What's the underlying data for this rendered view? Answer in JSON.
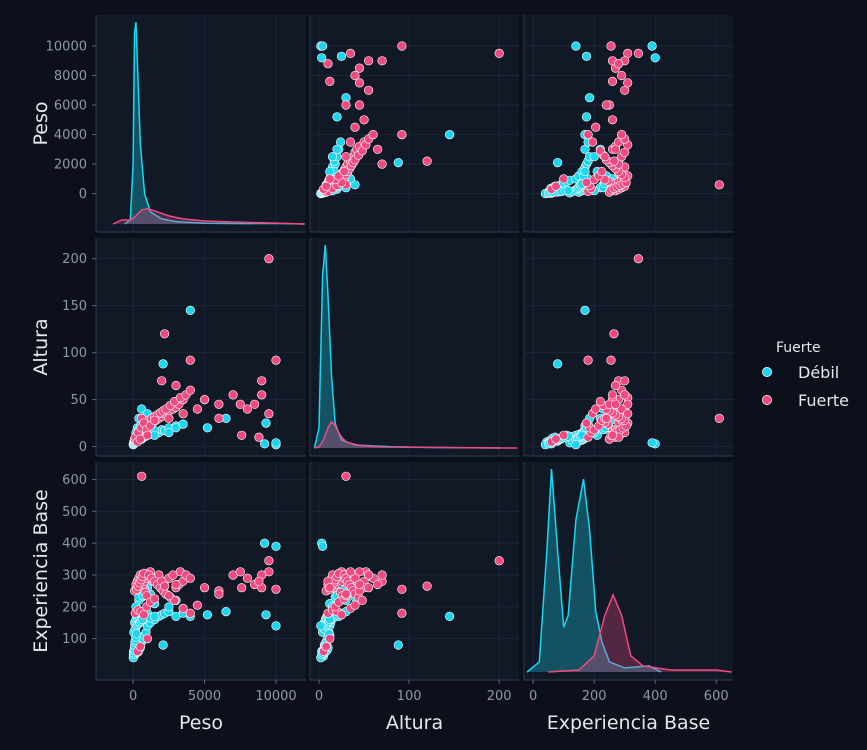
{
  "chart_data": {
    "type": "scatter",
    "subtype": "pairplot",
    "variables": [
      "Peso",
      "Altura",
      "Experiencia Base"
    ],
    "axis": {
      "Peso": {
        "range": [
          -2600,
          12100
        ],
        "ticks": [
          0,
          5000,
          10000
        ],
        "ticks_y": [
          0,
          2000,
          4000,
          6000,
          8000,
          10000
        ]
      },
      "Altura": {
        "range": [
          -10,
          222
        ],
        "ticks": [
          0,
          100,
          200
        ],
        "ticks_y": [
          0,
          50,
          100,
          150,
          200
        ]
      },
      "Experiencia Base": {
        "range": [
          -30,
          655
        ],
        "ticks": [
          0,
          200,
          400,
          600
        ],
        "ticks_y": [
          100,
          200,
          300,
          400,
          500,
          600
        ]
      }
    },
    "legend": {
      "title": "Fuerte",
      "position": "right",
      "entries": [
        {
          "label": "Débil",
          "color": "#1ad6f0"
        },
        {
          "label": "Fuerte",
          "color": "#f04a80"
        }
      ]
    },
    "grid": true,
    "series": [
      {
        "name": "Débil",
        "color": "#1ad6f0",
        "points": [
          [
            30,
            3,
            60
          ],
          [
            60,
            5,
            45
          ],
          [
            80,
            5,
            65
          ],
          [
            100,
            4,
            50
          ],
          [
            120,
            6,
            70
          ],
          [
            150,
            5,
            55
          ],
          [
            200,
            7,
            60
          ],
          [
            250,
            8,
            75
          ],
          [
            300,
            6,
            80
          ],
          [
            350,
            7,
            58
          ],
          [
            400,
            9,
            64
          ],
          [
            500,
            10,
            72
          ],
          [
            600,
            8,
            90
          ],
          [
            700,
            10,
            100
          ],
          [
            800,
            12,
            110
          ],
          [
            900,
            11,
            120
          ],
          [
            1000,
            12,
            140
          ],
          [
            1200,
            13,
            150
          ],
          [
            1500,
            14,
            160
          ],
          [
            1800,
            15,
            170
          ],
          [
            2000,
            18,
            175
          ],
          [
            2200,
            17,
            180
          ],
          [
            2500,
            20,
            185
          ],
          [
            3000,
            22,
            170
          ],
          [
            3500,
            24,
            180
          ],
          [
            100,
            6,
            150
          ],
          [
            200,
            7,
            160
          ],
          [
            300,
            8,
            165
          ],
          [
            400,
            9,
            170
          ],
          [
            500,
            10,
            175
          ],
          [
            600,
            11,
            180
          ],
          [
            700,
            12,
            160
          ],
          [
            800,
            13,
            170
          ],
          [
            900,
            14,
            175
          ],
          [
            1000,
            15,
            180
          ],
          [
            1200,
            16,
            165
          ],
          [
            1500,
            17,
            170
          ],
          [
            50,
            4,
            120
          ],
          [
            150,
            6,
            130
          ],
          [
            250,
            8,
            140
          ],
          [
            350,
            9,
            145
          ],
          [
            450,
            10,
            150
          ],
          [
            550,
            11,
            155
          ],
          [
            650,
            12,
            160
          ],
          [
            10,
            2,
            40
          ],
          [
            20,
            3,
            50
          ],
          [
            40,
            4,
            55
          ],
          [
            70,
            5,
            62
          ],
          [
            90,
            6,
            68
          ],
          [
            110,
            7,
            78
          ],
          [
            130,
            8,
            88
          ],
          [
            160,
            9,
            95
          ],
          [
            190,
            10,
            105
          ],
          [
            220,
            11,
            115
          ],
          [
            600,
            40,
            230
          ],
          [
            400,
            30,
            220
          ],
          [
            1200,
            25,
            240
          ],
          [
            2100,
            88,
            80
          ],
          [
            6500,
            30,
            185
          ],
          [
            9300,
            25,
            175
          ],
          [
            10000,
            2,
            140
          ],
          [
            4000,
            145,
            170
          ],
          [
            1000,
            35,
            260
          ],
          [
            300,
            20,
            250
          ],
          [
            500,
            22,
            240
          ],
          [
            800,
            28,
            255
          ],
          [
            1500,
            12,
            210
          ],
          [
            2500,
            15,
            200
          ],
          [
            3000,
            20,
            220
          ],
          [
            200,
            15,
            200
          ],
          [
            400,
            18,
            230
          ],
          [
            700,
            20,
            235
          ],
          [
            5200,
            20,
            175
          ],
          [
            9200,
            3,
            400
          ],
          [
            10000,
            4,
            390
          ]
        ]
      },
      {
        "name": "Fuerte",
        "color": "#f04a80",
        "points": [
          [
            200,
            10,
            270
          ],
          [
            300,
            12,
            280
          ],
          [
            400,
            14,
            290
          ],
          [
            500,
            15,
            300
          ],
          [
            600,
            16,
            260
          ],
          [
            700,
            18,
            270
          ],
          [
            800,
            20,
            280
          ],
          [
            900,
            22,
            290
          ],
          [
            1000,
            24,
            300
          ],
          [
            1200,
            25,
            310
          ],
          [
            1400,
            26,
            280
          ],
          [
            1600,
            28,
            290
          ],
          [
            1800,
            30,
            300
          ],
          [
            2000,
            32,
            270
          ],
          [
            2200,
            35,
            280
          ],
          [
            2500,
            38,
            290
          ],
          [
            2800,
            40,
            300
          ],
          [
            3000,
            42,
            260
          ],
          [
            3200,
            45,
            270
          ],
          [
            3500,
            50,
            280
          ],
          [
            100,
            8,
            250
          ],
          [
            250,
            12,
            255
          ],
          [
            350,
            14,
            265
          ],
          [
            450,
            16,
            275
          ],
          [
            550,
            18,
            285
          ],
          [
            650,
            20,
            295
          ],
          [
            750,
            22,
            305
          ],
          [
            850,
            24,
            245
          ],
          [
            950,
            26,
            235
          ],
          [
            1100,
            28,
            300
          ],
          [
            1300,
            30,
            290
          ],
          [
            1500,
            32,
            280
          ],
          [
            1700,
            34,
            270
          ],
          [
            1900,
            36,
            260
          ],
          [
            2100,
            38,
            250
          ],
          [
            2300,
            40,
            240
          ],
          [
            2600,
            44,
            230
          ],
          [
            2900,
            48,
            220
          ],
          [
            3300,
            52,
            310
          ],
          [
            3700,
            55,
            300
          ],
          [
            4000,
            60,
            290
          ],
          [
            2000,
            70,
            280
          ],
          [
            3000,
            65,
            270
          ],
          [
            5000,
            50,
            260
          ],
          [
            6000,
            45,
            250
          ],
          [
            7000,
            55,
            300
          ],
          [
            7500,
            45,
            310
          ],
          [
            8000,
            40,
            290
          ],
          [
            8500,
            45,
            270
          ],
          [
            9000,
            55,
            260
          ],
          [
            9500,
            35,
            310
          ],
          [
            9500,
            200,
            345
          ],
          [
            9000,
            70,
            300
          ],
          [
            10000,
            92,
            255
          ],
          [
            4000,
            92,
            180
          ],
          [
            2200,
            120,
            265
          ],
          [
            600,
            30,
            610
          ],
          [
            150,
            10,
            180
          ],
          [
            350,
            15,
            190
          ],
          [
            550,
            20,
            185
          ],
          [
            750,
            25,
            175
          ],
          [
            950,
            18,
            200
          ],
          [
            1200,
            22,
            215
          ],
          [
            1500,
            28,
            225
          ],
          [
            2500,
            30,
            235
          ],
          [
            3500,
            35,
            195
          ],
          [
            4500,
            40,
            205
          ],
          [
            6000,
            30,
            240
          ],
          [
            8800,
            10,
            280
          ],
          [
            7600,
            12,
            260
          ],
          [
            300,
            5,
            60
          ],
          [
            500,
            8,
            75
          ],
          [
            1000,
            12,
            100
          ]
        ]
      }
    ],
    "kde": {
      "Peso": {
        "Débil": [
          [
            -600,
            0.0
          ],
          [
            -200,
            0.02
          ],
          [
            0,
            0.3
          ],
          [
            100,
            0.95
          ],
          [
            200,
            1.0
          ],
          [
            300,
            0.8
          ],
          [
            500,
            0.4
          ],
          [
            800,
            0.15
          ],
          [
            1200,
            0.06
          ],
          [
            2000,
            0.025
          ],
          [
            3000,
            0.012
          ],
          [
            5000,
            0.004
          ],
          [
            8000,
            0.002
          ],
          [
            10000,
            0.003
          ],
          [
            12000,
            0.0
          ]
        ],
        "Fuerte": [
          [
            -1400,
            0.0
          ],
          [
            -800,
            0.02
          ],
          [
            -200,
            0.02
          ],
          [
            200,
            0.04
          ],
          [
            600,
            0.07
          ],
          [
            1000,
            0.075
          ],
          [
            1500,
            0.065
          ],
          [
            2500,
            0.04
          ],
          [
            3500,
            0.025
          ],
          [
            5000,
            0.015
          ],
          [
            7000,
            0.01
          ],
          [
            9000,
            0.006
          ],
          [
            10500,
            0.003
          ],
          [
            12000,
            0.0
          ]
        ]
      },
      "Altura": {
        "Débil": [
          [
            -5,
            0.0
          ],
          [
            0,
            0.1
          ],
          [
            4,
            0.85
          ],
          [
            7,
            1.0
          ],
          [
            10,
            0.75
          ],
          [
            14,
            0.35
          ],
          [
            18,
            0.12
          ],
          [
            25,
            0.04
          ],
          [
            40,
            0.015
          ],
          [
            80,
            0.006
          ],
          [
            120,
            0.003
          ],
          [
            150,
            0.002
          ],
          [
            200,
            0.0
          ]
        ],
        "Fuerte": [
          [
            -5,
            0.0
          ],
          [
            0,
            0.005
          ],
          [
            5,
            0.04
          ],
          [
            10,
            0.1
          ],
          [
            14,
            0.13
          ],
          [
            18,
            0.11
          ],
          [
            24,
            0.06
          ],
          [
            30,
            0.03
          ],
          [
            45,
            0.012
          ],
          [
            70,
            0.006
          ],
          [
            100,
            0.004
          ],
          [
            150,
            0.002
          ],
          [
            220,
            0.0
          ]
        ]
      },
      "Experiencia Base": {
        "Débil": [
          [
            -20,
            0.0
          ],
          [
            20,
            0.05
          ],
          [
            45,
            0.6
          ],
          [
            60,
            1.0
          ],
          [
            80,
            0.6
          ],
          [
            100,
            0.22
          ],
          [
            115,
            0.28
          ],
          [
            140,
            0.75
          ],
          [
            165,
            0.95
          ],
          [
            185,
            0.7
          ],
          [
            205,
            0.3
          ],
          [
            225,
            0.15
          ],
          [
            250,
            0.05
          ],
          [
            300,
            0.02
          ],
          [
            380,
            0.03
          ],
          [
            420,
            0.0
          ]
        ],
        "Fuerte": [
          [
            50,
            0.0
          ],
          [
            150,
            0.01
          ],
          [
            200,
            0.08
          ],
          [
            235,
            0.28
          ],
          [
            262,
            0.38
          ],
          [
            290,
            0.28
          ],
          [
            320,
            0.08
          ],
          [
            360,
            0.03
          ],
          [
            450,
            0.01
          ],
          [
            600,
            0.01
          ],
          [
            650,
            0.0
          ]
        ]
      }
    }
  }
}
